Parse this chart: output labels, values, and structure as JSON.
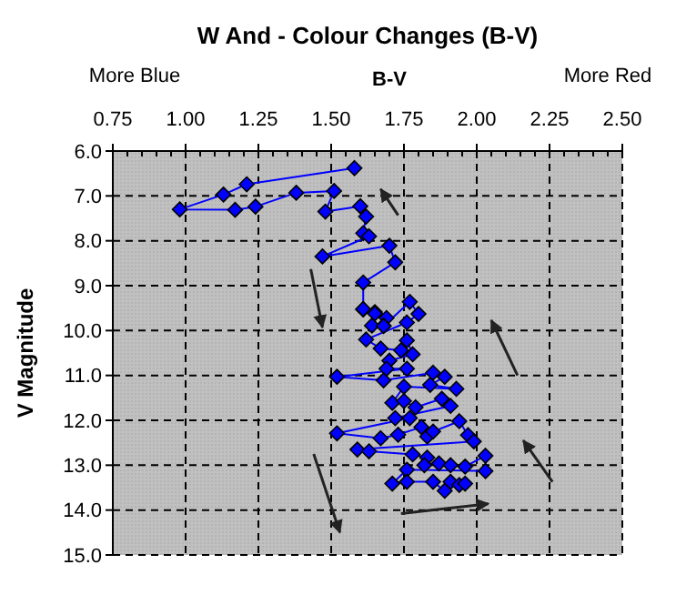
{
  "chart_data": {
    "type": "line",
    "title": "W And - Colour Changes (B-V)",
    "xlabel": "B-V",
    "ylabel": "V Magnitude",
    "annotations": [
      "More Blue",
      "More Red"
    ],
    "xlim": [
      0.75,
      2.5
    ],
    "xticks": [
      {
        "value": 0.75,
        "label": "0.75"
      },
      {
        "value": 1,
        "label": "1.00"
      },
      {
        "value": 1.25,
        "label": "1.25"
      },
      {
        "value": 1.5,
        "label": "1.50"
      },
      {
        "value": 1.75,
        "label": "1.75"
      },
      {
        "value": 2,
        "label": "2.00"
      },
      {
        "value": 2.25,
        "label": "2.25"
      },
      {
        "value": 2.5,
        "label": "2.50"
      }
    ],
    "ylim": [
      15,
      6
    ],
    "yticks": [
      {
        "value": 6,
        "label": "6.0"
      },
      {
        "value": 7,
        "label": "7.0"
      },
      {
        "value": 8,
        "label": "8.0"
      },
      {
        "value": 9,
        "label": "9.0"
      },
      {
        "value": 10,
        "label": "10.0"
      },
      {
        "value": 11,
        "label": "11.0"
      },
      {
        "value": 12,
        "label": "12.0"
      },
      {
        "value": 13,
        "label": "13.0"
      },
      {
        "value": 14,
        "label": "14.0"
      },
      {
        "value": 15,
        "label": "15.0"
      }
    ],
    "grid": true,
    "marker": "diamond",
    "line_style": "solid",
    "series": [
      {
        "color": "#0000ff",
        "x": [
          1.58,
          1.21,
          1.13,
          0.98,
          1.17,
          1.24,
          1.38,
          1.51,
          1.48,
          1.6,
          1.62,
          1.61,
          1.63,
          1.47,
          1.7,
          1.72,
          1.61,
          1.61,
          1.65,
          1.61,
          1.65,
          1.69,
          1.68,
          1.64,
          1.68,
          1.77,
          1.8,
          1.76,
          1.62,
          1.67,
          1.74,
          1.76,
          1.78,
          1.7,
          1.69,
          1.76,
          1.52,
          1.68,
          1.85,
          1.89,
          1.84,
          1.93,
          1.75,
          1.71,
          1.75,
          1.79,
          1.88,
          1.91,
          1.72,
          1.77,
          1.52,
          1.67,
          1.73,
          1.81,
          1.83,
          1.85,
          1.94,
          1.97,
          1.99,
          1.59,
          1.63,
          1.78,
          1.83,
          1.82,
          1.87,
          1.91,
          1.96,
          2.03,
          2.03,
          1.76,
          1.71,
          1.76,
          1.85,
          1.89,
          1.91,
          1.94,
          1.96
        ],
        "values": [
          6.38,
          6.74,
          6.97,
          7.3,
          7.31,
          7.24,
          6.93,
          6.89,
          7.35,
          7.23,
          7.46,
          7.83,
          7.9,
          8.35,
          8.11,
          8.48,
          8.93,
          9.53,
          9.59,
          9.52,
          9.62,
          9.72,
          9.89,
          9.89,
          9.9,
          9.36,
          9.63,
          9.82,
          10.2,
          10.4,
          10.44,
          10.22,
          10.53,
          10.67,
          10.85,
          10.85,
          11.03,
          11.11,
          10.94,
          11.03,
          11.21,
          11.3,
          11.25,
          11.61,
          11.57,
          11.71,
          11.52,
          11.68,
          11.95,
          11.95,
          12.29,
          12.4,
          12.32,
          12.15,
          12.36,
          12.25,
          12.02,
          12.33,
          12.47,
          12.65,
          12.69,
          12.76,
          12.83,
          13.0,
          12.96,
          13.0,
          13.03,
          12.79,
          13.13,
          13.1,
          13.41,
          13.37,
          13.37,
          13.57,
          13.37,
          13.44,
          13.41
        ]
      }
    ]
  }
}
